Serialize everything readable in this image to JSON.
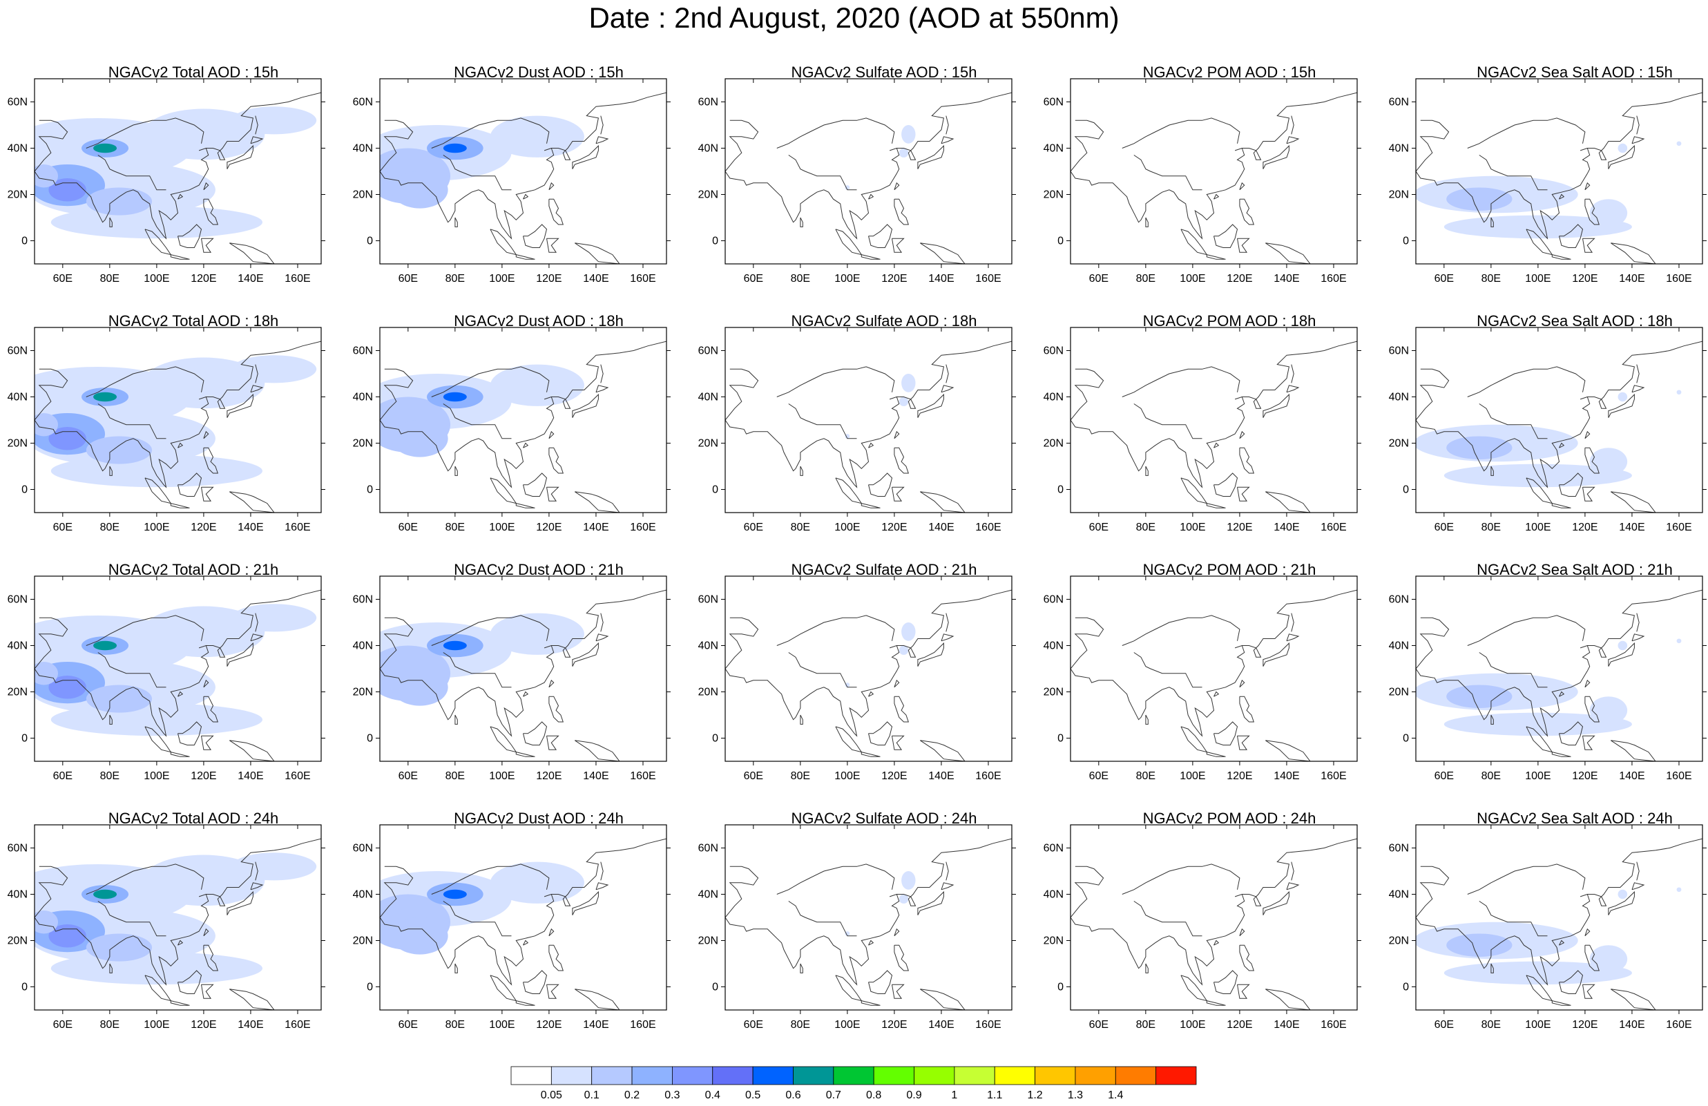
{
  "figure": {
    "title": "Date : 2nd August, 2020 (AOD at 550nm)"
  },
  "axes": {
    "lon_ticks": [
      "60E",
      "80E",
      "100E",
      "120E",
      "140E",
      "160E"
    ],
    "lon_values": [
      60,
      80,
      100,
      120,
      140,
      160
    ],
    "lat_ticks": [
      "60N",
      "40N",
      "20N",
      "0"
    ],
    "lat_values": [
      60,
      40,
      20,
      0
    ],
    "lon_range": [
      48,
      170
    ],
    "lat_range": [
      -10,
      70
    ]
  },
  "panels": [
    [
      {
        "title": "NGACv2 Total AOD : 15h",
        "variable": "total"
      },
      {
        "title": "NGACv2 Dust AOD : 15h",
        "variable": "dust"
      },
      {
        "title": "NGACv2 Sulfate AOD : 15h",
        "variable": "sulfate"
      },
      {
        "title": "NGACv2 POM AOD : 15h",
        "variable": "pom"
      },
      {
        "title": "NGACv2 Sea Salt AOD : 15h",
        "variable": "seasalt"
      }
    ],
    [
      {
        "title": "NGACv2 Total AOD : 18h",
        "variable": "total"
      },
      {
        "title": "NGACv2 Dust AOD : 18h",
        "variable": "dust"
      },
      {
        "title": "NGACv2 Sulfate AOD : 18h",
        "variable": "sulfate"
      },
      {
        "title": "NGACv2 POM AOD : 18h",
        "variable": "pom"
      },
      {
        "title": "NGACv2 Sea Salt AOD : 18h",
        "variable": "seasalt"
      }
    ],
    [
      {
        "title": "NGACv2 Total AOD : 21h",
        "variable": "total"
      },
      {
        "title": "NGACv2 Dust AOD : 21h",
        "variable": "dust"
      },
      {
        "title": "NGACv2 Sulfate AOD : 21h",
        "variable": "sulfate"
      },
      {
        "title": "NGACv2 POM AOD : 21h",
        "variable": "pom"
      },
      {
        "title": "NGACv2 Sea Salt AOD : 21h",
        "variable": "seasalt"
      }
    ],
    [
      {
        "title": "NGACv2 Total AOD : 24h",
        "variable": "total"
      },
      {
        "title": "NGACv2 Dust AOD : 24h",
        "variable": "dust"
      },
      {
        "title": "NGACv2 Sulfate AOD : 24h",
        "variable": "sulfate"
      },
      {
        "title": "NGACv2 POM AOD : 24h",
        "variable": "pom"
      },
      {
        "title": "NGACv2 Sea Salt  AOD : 24h",
        "variable": "seasalt"
      }
    ]
  ],
  "colorbar": {
    "labels": [
      "0.05",
      "0.1",
      "0.2",
      "0.3",
      "0.4",
      "0.5",
      "0.6",
      "0.7",
      "0.8",
      "0.9",
      "1",
      "1.1",
      "1.2",
      "1.3",
      "1.4"
    ],
    "colors": [
      "#ffffff",
      "#d6e2ff",
      "#b5c9ff",
      "#8eb2ff",
      "#7f96ff",
      "#6370f8",
      "#0063ff",
      "#009696",
      "#00c633",
      "#63ff00",
      "#96ff00",
      "#c6ff33",
      "#ffff00",
      "#ffc600",
      "#ffa000",
      "#ff7c00",
      "#ff1900"
    ]
  }
}
